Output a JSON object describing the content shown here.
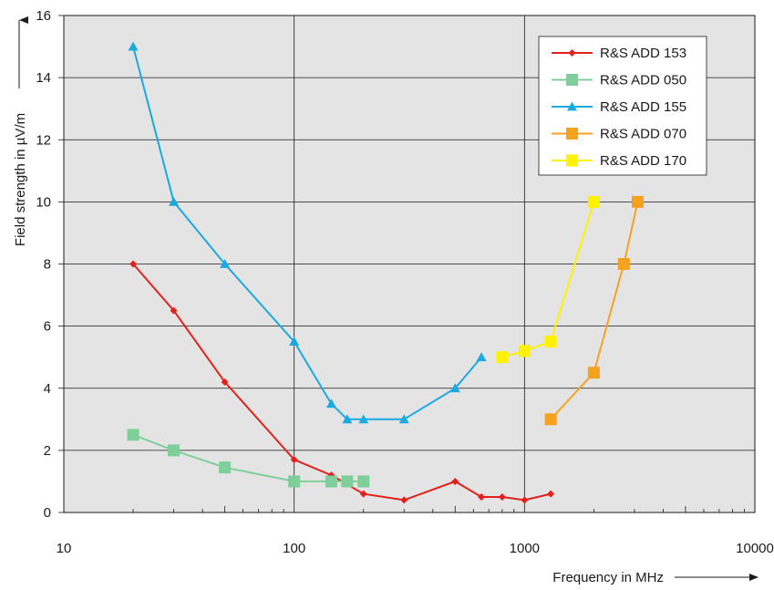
{
  "chart_data": {
    "type": "line",
    "xlabel": "Frequency in MHz",
    "ylabel": "Field strength in µV/m",
    "x_scale": "log",
    "xlim": [
      10,
      10000
    ],
    "ylim": [
      0,
      16
    ],
    "x_ticks": [
      "10",
      "100",
      "1000",
      "10000"
    ],
    "y_ticks": [
      "0",
      "2",
      "4",
      "6",
      "8",
      "10",
      "12",
      "14",
      "16"
    ],
    "grid": true,
    "legend_position": "top-right",
    "series": [
      {
        "name": "R&S ADD 153",
        "color": "#e3211c",
        "marker": "diamond",
        "x": [
          20,
          30,
          50,
          100,
          145,
          200,
          300,
          500,
          650,
          800,
          1000,
          1300
        ],
        "y": [
          8,
          6.5,
          4.2,
          1.7,
          1.2,
          0.6,
          0.4,
          1.0,
          0.5,
          0.5,
          0.4,
          0.6
        ]
      },
      {
        "name": "R&S ADD 050",
        "color": "#7fcf9b",
        "marker": "square",
        "x": [
          20,
          30,
          50,
          100,
          145,
          170,
          200
        ],
        "y": [
          2.5,
          2.0,
          1.45,
          1.0,
          1.0,
          1.0,
          1.0
        ]
      },
      {
        "name": "R&S ADD 155",
        "color": "#1aaae2",
        "marker": "triangle",
        "x": [
          20,
          30,
          50,
          100,
          145,
          170,
          200,
          300,
          500,
          650
        ],
        "y": [
          15,
          10,
          8,
          5.5,
          3.5,
          3.0,
          3.0,
          3.0,
          4.0,
          5.0
        ]
      },
      {
        "name": "R&S ADD 070",
        "color": "#f7a21e",
        "marker": "square",
        "x": [
          1300,
          2000,
          2700,
          3100
        ],
        "y": [
          3.0,
          4.5,
          8.0,
          10.0
        ]
      },
      {
        "name": "R&S ADD 170",
        "color": "#fff200",
        "marker": "square",
        "x": [
          800,
          1000,
          1300,
          2000
        ],
        "y": [
          5.0,
          5.2,
          5.5,
          10.0
        ]
      }
    ]
  }
}
